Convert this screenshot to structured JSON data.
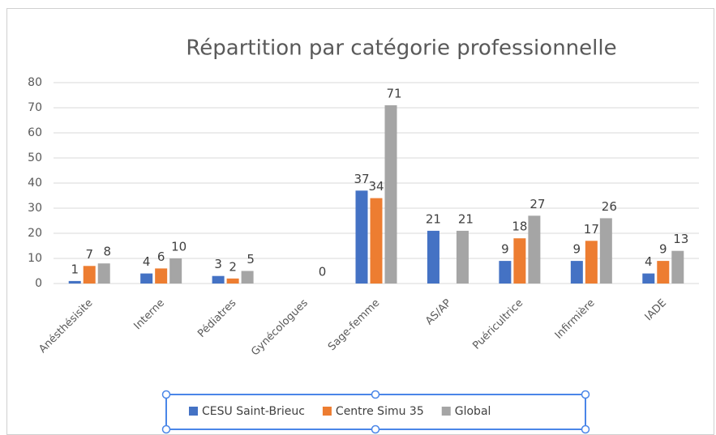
{
  "chart_data": {
    "type": "bar",
    "title": "Répartition par catégorie professionnelle",
    "categories": [
      "Anésthésisite",
      "Interne",
      "Pédiatres",
      "Gynécologues",
      "Sage-femme",
      "AS/AP",
      "Puéricultrice",
      "Infirmière",
      "IADE"
    ],
    "series": [
      {
        "name": "CESU Saint-Brieuc",
        "color": "#4472c4",
        "values": [
          1,
          4,
          3,
          null,
          37,
          21,
          9,
          9,
          4
        ]
      },
      {
        "name": "Centre Simu 35",
        "color": "#ed7d31",
        "values": [
          7,
          6,
          2,
          null,
          34,
          null,
          18,
          17,
          9
        ]
      },
      {
        "name": "Global",
        "color": "#a5a5a5",
        "values": [
          8,
          10,
          5,
          0,
          71,
          21,
          27,
          26,
          13
        ]
      }
    ],
    "ylim": [
      0,
      80
    ],
    "yticks": [
      0,
      10,
      20,
      30,
      40,
      50,
      60,
      70,
      80
    ],
    "grid": true,
    "legend": "bottom"
  }
}
